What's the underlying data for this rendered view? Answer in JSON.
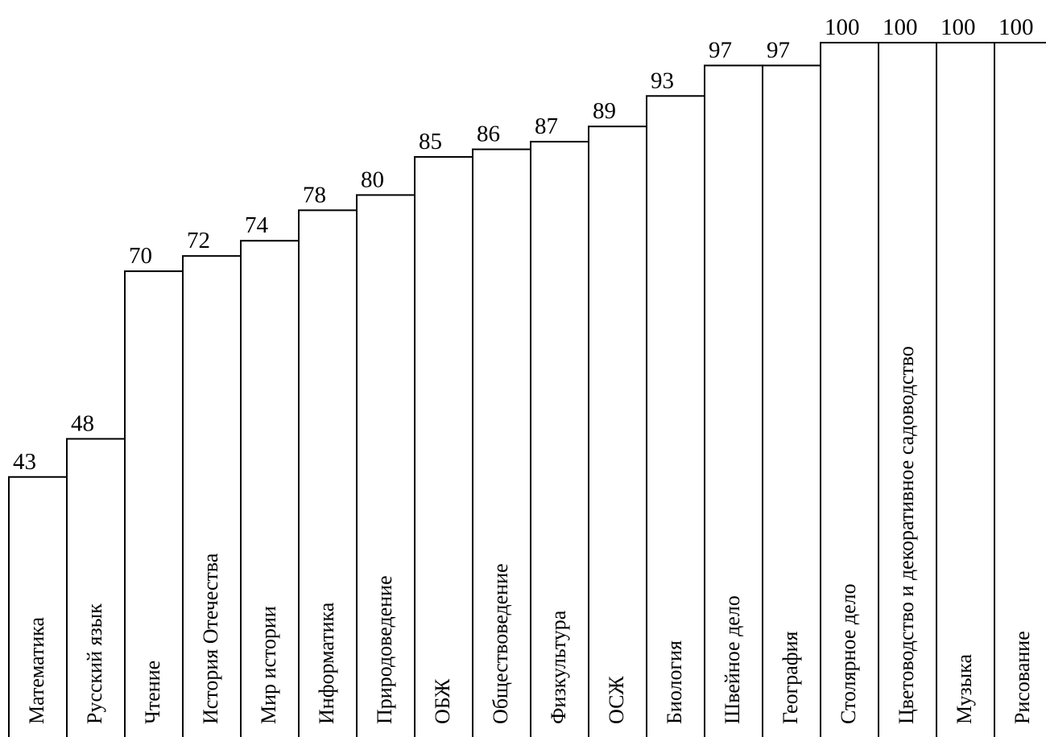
{
  "chart_data": {
    "type": "bar",
    "title": "",
    "xlabel": "",
    "ylabel": "",
    "ylim": [
      0,
      100
    ],
    "categories": [
      "Математика",
      "Русский язык",
      "Чтение",
      "История Отечества",
      "Мир истории",
      "Информатика",
      "Природоведение",
      "ОБЖ",
      "Обществоведение",
      "Физкультура",
      "ОСЖ",
      "Биология",
      "Швейное дело",
      "География",
      "Столярное дело",
      "Цветоводство и декоративное садоводство",
      "Музыка",
      "Рисование"
    ],
    "values": [
      43,
      48,
      70,
      72,
      74,
      78,
      80,
      85,
      86,
      87,
      89,
      93,
      97,
      97,
      100,
      100,
      100,
      100
    ],
    "data_labels": [
      "43",
      "48",
      "70",
      "72",
      "74",
      "78",
      "80",
      "85",
      "86",
      "87",
      "89",
      "93",
      "97",
      "97",
      "100",
      "100",
      "100",
      "100"
    ],
    "grid": false,
    "legend": "none",
    "colors": {
      "bar_fill": "#ffffff",
      "bar_stroke": "#000000",
      "text": "#000000"
    }
  }
}
